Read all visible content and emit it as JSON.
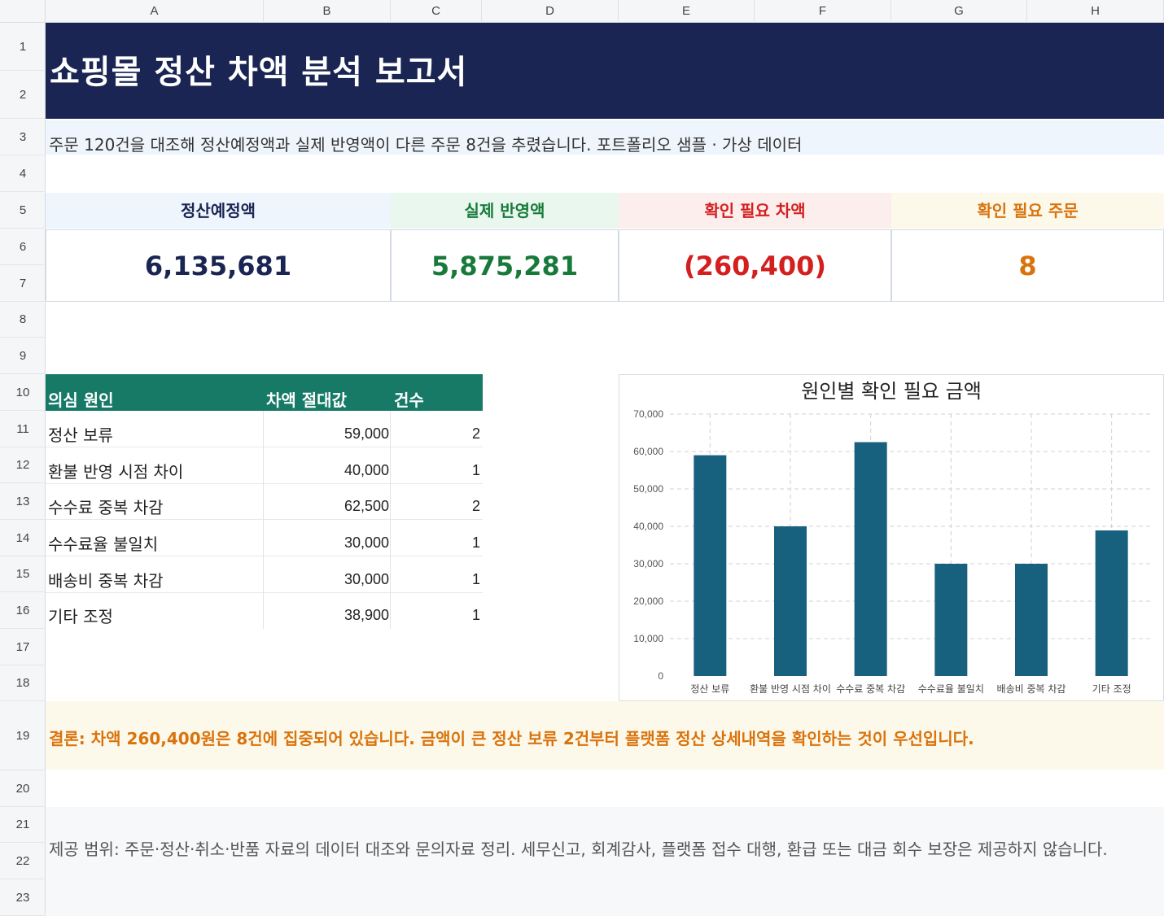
{
  "columns": [
    "A",
    "B",
    "C",
    "D",
    "E",
    "F",
    "G",
    "H"
  ],
  "rows": [
    "1",
    "2",
    "3",
    "4",
    "5",
    "6",
    "7",
    "8",
    "9",
    "10",
    "11",
    "12",
    "13",
    "14",
    "15",
    "16",
    "17",
    "18",
    "19",
    "20",
    "21",
    "22",
    "23"
  ],
  "title": "쇼핑몰 정산 차액 분석 보고서",
  "subtitle": "주문 120건을 대조해 정산예정액과 실제 반영액이 다른 주문 8건을 추렸습니다. 포트폴리오 샘플 · 가상 데이터",
  "kpis": [
    {
      "label": "정산예정액",
      "value": "6,135,681",
      "color": "#1b2553",
      "bg": "#eef5fc"
    },
    {
      "label": "실제 반영액",
      "value": "5,875,281",
      "color": "#177a3b",
      "bg": "#eaf7ee"
    },
    {
      "label": "확인 필요 차액",
      "value": "(260,400)",
      "color": "#d41f1f",
      "bg": "#fdeeee"
    },
    {
      "label": "확인 필요 주문",
      "value": "8",
      "color": "#d9730d",
      "bg": "#fdf9ea"
    }
  ],
  "table": {
    "headers": [
      "의심 원인",
      "차액 절대값",
      "건수"
    ],
    "rows": [
      {
        "cause": "정산 보류",
        "amount": "59,000",
        "count": "2"
      },
      {
        "cause": "환불 반영 시점 차이",
        "amount": "40,000",
        "count": "1"
      },
      {
        "cause": "수수료 중복 차감",
        "amount": "62,500",
        "count": "2"
      },
      {
        "cause": "수수료율 불일치",
        "amount": "30,000",
        "count": "1"
      },
      {
        "cause": "배송비 중복 차감",
        "amount": "30,000",
        "count": "1"
      },
      {
        "cause": "기타 조정",
        "amount": "38,900",
        "count": "1"
      }
    ]
  },
  "chart_data": {
    "type": "bar",
    "title": "원인별 확인 필요 금액",
    "categories": [
      "정산 보류",
      "환불 반영 시점 차이",
      "수수료 중복 차감",
      "수수료율 불일치",
      "배송비 중복 차감",
      "기타 조정"
    ],
    "values": [
      59000,
      40000,
      62500,
      30000,
      30000,
      38900
    ],
    "ylim": [
      0,
      70000
    ],
    "yticks": [
      "0",
      "10,000",
      "20,000",
      "30,000",
      "40,000",
      "50,000",
      "60,000",
      "70,000"
    ],
    "grid": true,
    "bar_color": "#17607e"
  },
  "conclusion": "결론: 차액 260,400원은 8건에 집중되어 있습니다. 금액이 큰 정산 보류 2건부터 플랫폼 정산 상세내역을 확인하는 것이 우선입니다.",
  "scope": "제공 범위: 주문·정산·취소·반품 자료의 데이터 대조와 문의자료 정리. 세무신고, 회계감사, 플랫폼 접수 대행, 환급 또는 대금 회수 보장은 제공하지 않습니다."
}
